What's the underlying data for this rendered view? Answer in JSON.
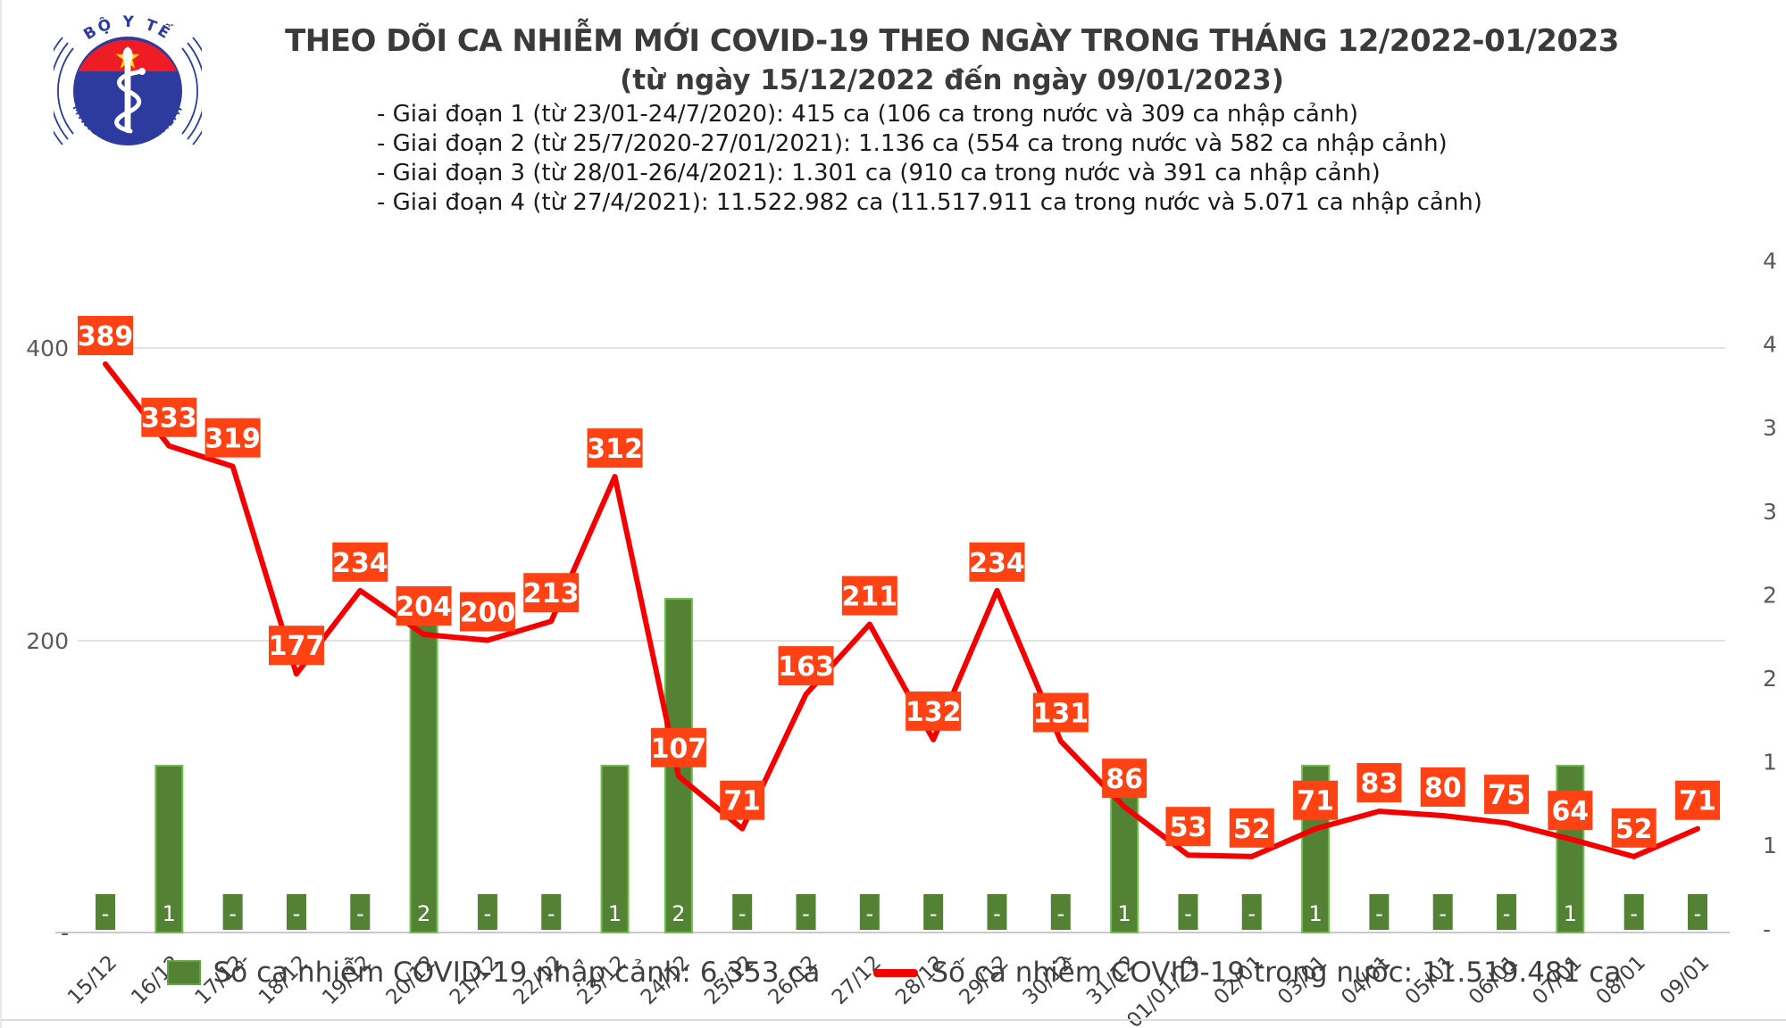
{
  "logo": {
    "top_text": "BỘ Y TẾ",
    "bottom_text": "MINISTRY OF HEALTH",
    "colors": {
      "blue": "#2d3a9e",
      "red": "#ee1c25",
      "star_yellow": "#ffde00"
    }
  },
  "title": "THEO DÕI CA NHIỄM MỚI COVID-19 THEO NGÀY TRONG THÁNG 12/2022-01/2023",
  "subtitle": "(từ ngày 15/12/2022 đến ngày 09/01/2023)",
  "phases": [
    "- Giai đoạn 1 (từ 23/01-24/7/2020): 415 ca (106 ca trong nước và 309 ca nhập cảnh)",
    "- Giai đoạn 2 (từ 25/7/2020-27/01/2021): 1.136 ca (554 ca trong nước và 582 ca nhập cảnh)",
    "- Giai đoạn 3 (từ 28/01-26/4/2021): 1.301 ca (910 ca trong nước và 391 ca nhập cảnh)",
    "- Giai đoạn 4 (từ 27/4/2021): 11.522.982 ca (11.517.911 ca trong nước và 5.071 ca nhập cảnh)"
  ],
  "chart_data": {
    "type": "line+bar",
    "categories": [
      "15/12",
      "16/12",
      "17/12",
      "18/12",
      "19/12",
      "20/12",
      "21/12",
      "22/12",
      "23/12",
      "24/12",
      "25/12",
      "26/12",
      "27/12",
      "28/12",
      "29/12",
      "30/12",
      "31/12",
      "01/01/23",
      "02/01",
      "03/01",
      "04/01",
      "05/01",
      "06/01",
      "07/01",
      "08/01",
      "09/01"
    ],
    "series": [
      {
        "name": "Số ca nhiễm COVID-19 trong nước",
        "type": "line",
        "axis": "left",
        "color": "#f50000",
        "values": [
          389,
          333,
          319,
          177,
          234,
          204,
          200,
          213,
          312,
          107,
          71,
          163,
          211,
          132,
          234,
          131,
          86,
          53,
          52,
          71,
          83,
          80,
          75,
          64,
          52,
          71
        ]
      },
      {
        "name": "Số ca nhiễm COVID-19 nhập cảnh",
        "type": "bar",
        "axis": "right",
        "color": "#548235",
        "values": [
          0,
          1,
          0,
          0,
          0,
          2,
          0,
          0,
          1,
          2,
          0,
          0,
          0,
          0,
          0,
          0,
          1,
          0,
          0,
          1,
          0,
          0,
          0,
          1,
          0,
          0
        ]
      }
    ],
    "zero_label": "-",
    "left_axis": {
      "range": [
        0,
        400
      ],
      "ticks": [
        "400",
        "200",
        "-"
      ]
    },
    "right_axis": {
      "range": [
        0,
        4
      ],
      "ticks": [
        "4",
        "4",
        "3",
        "3",
        "2",
        "2",
        "1",
        "1",
        "-"
      ]
    },
    "grid": "horizontal",
    "label_box_color": "#ff4214",
    "bar_stroke_color": "#6fbf4a",
    "axis_text_color": "#595959",
    "date_text_color": "#404040",
    "legend_position": "bottom"
  },
  "legend": {
    "bar_label": "Số ca nhiễm COVID-19 nhập cảnh: 6.353 ca",
    "line_label": "Số ca nhiễm COVID-19 trong nước: 11.519.481 ca"
  }
}
